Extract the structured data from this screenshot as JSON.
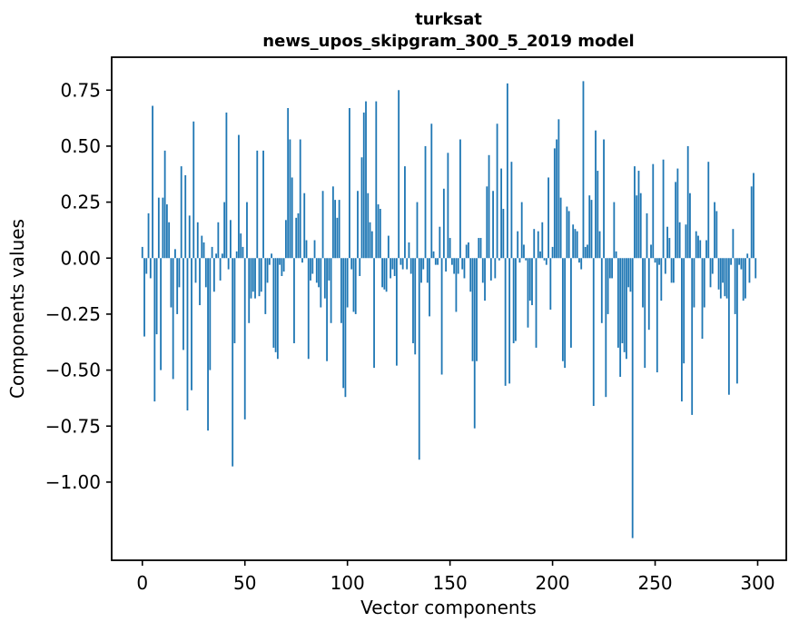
{
  "figure": {
    "background": "#ffffff",
    "text_color": "#000000"
  },
  "chart_data": {
    "type": "bar",
    "title_line1": "turksat",
    "title_line2": "news_upos_skipgram_300_5_2019 model",
    "xlabel": "Vector components",
    "ylabel": "Components values",
    "bar_color": "#1f77b4",
    "grid": false,
    "legend": null,
    "x_start": 0,
    "xlim": [
      -14.95,
      313.95
    ],
    "ylim": [
      -1.349,
      0.897
    ],
    "xticks": [
      0,
      50,
      100,
      150,
      200,
      250,
      300
    ],
    "yticks": [
      0.75,
      0.5,
      0.25,
      0.0,
      -0.25,
      -0.5,
      -0.75,
      -1.0
    ],
    "values": [
      0.05,
      -0.35,
      -0.07,
      0.2,
      -0.09,
      0.68,
      -0.64,
      -0.34,
      0.27,
      -0.5,
      0.27,
      0.48,
      0.24,
      0.16,
      -0.22,
      -0.54,
      0.04,
      -0.25,
      -0.13,
      0.41,
      -0.41,
      0.37,
      -0.68,
      0.19,
      -0.59,
      0.61,
      -0.11,
      0.16,
      -0.21,
      0.1,
      0.07,
      -0.13,
      -0.77,
      -0.5,
      0.05,
      -0.15,
      0.02,
      0.16,
      -0.1,
      0.02,
      0.25,
      0.65,
      -0.05,
      0.17,
      -0.93,
      -0.38,
      0.03,
      0.55,
      0.11,
      0.05,
      -0.72,
      0.25,
      -0.29,
      -0.18,
      -0.15,
      -0.18,
      0.48,
      -0.17,
      -0.15,
      0.48,
      -0.25,
      -0.11,
      -0.03,
      0.02,
      -0.4,
      -0.42,
      -0.45,
      -0.03,
      -0.08,
      -0.06,
      0.17,
      0.67,
      0.53,
      0.36,
      -0.38,
      0.18,
      0.2,
      0.53,
      -0.02,
      0.29,
      0.08,
      -0.45,
      -0.1,
      -0.07,
      0.08,
      -0.11,
      -0.13,
      -0.22,
      0.3,
      -0.18,
      -0.46,
      -0.1,
      -0.29,
      0.32,
      0.26,
      0.18,
      0.26,
      -0.29,
      -0.58,
      -0.62,
      -0.22,
      0.67,
      -0.05,
      -0.24,
      -0.25,
      0.3,
      -0.08,
      0.45,
      0.65,
      0.7,
      0.29,
      0.16,
      0.12,
      -0.49,
      0.7,
      0.24,
      0.22,
      -0.13,
      -0.14,
      -0.15,
      0.1,
      -0.09,
      -0.05,
      -0.08,
      -0.48,
      0.75,
      -0.03,
      -0.05,
      0.41,
      -0.05,
      0.07,
      -0.07,
      -0.38,
      -0.43,
      0.25,
      -0.9,
      -0.11,
      -0.05,
      0.5,
      -0.11,
      -0.26,
      0.6,
      0.03,
      -0.03,
      -0.03,
      0.14,
      -0.52,
      0.31,
      -0.06,
      0.47,
      0.09,
      -0.03,
      -0.07,
      -0.24,
      -0.07,
      0.53,
      -0.05,
      -0.09,
      0.06,
      0.07,
      -0.15,
      -0.46,
      -0.76,
      -0.46,
      0.09,
      0.09,
      -0.11,
      -0.19,
      0.32,
      0.46,
      -0.1,
      0.3,
      -0.09,
      0.6,
      -0.01,
      0.4,
      0.22,
      -0.57,
      0.78,
      -0.56,
      0.43,
      -0.38,
      -0.37,
      0.12,
      -0.02,
      0.25,
      0.06,
      -0.01,
      -0.31,
      -0.19,
      -0.21,
      0.13,
      -0.4,
      0.12,
      0.03,
      0.16,
      -0.01,
      -0.03,
      0.36,
      -0.23,
      0.05,
      0.49,
      0.53,
      0.62,
      0.27,
      -0.46,
      -0.49,
      0.23,
      0.21,
      -0.4,
      0.15,
      0.13,
      0.12,
      -0.02,
      -0.05,
      0.79,
      0.05,
      0.06,
      0.28,
      0.26,
      -0.66,
      0.57,
      0.39,
      0.12,
      -0.29,
      0.53,
      -0.62,
      -0.25,
      -0.09,
      -0.09,
      0.25,
      0.03,
      -0.4,
      -0.53,
      -0.38,
      -0.42,
      -0.45,
      -0.13,
      -0.15,
      -1.25,
      0.41,
      0.28,
      0.39,
      0.29,
      -0.22,
      -0.49,
      0.2,
      -0.32,
      0.06,
      0.42,
      -0.02,
      -0.51,
      -0.03,
      -0.19,
      0.44,
      -0.07,
      0.14,
      0.09,
      -0.11,
      -0.11,
      0.34,
      0.4,
      0.16,
      -0.64,
      -0.47,
      0.15,
      0.5,
      0.29,
      -0.7,
      -0.22,
      0.12,
      0.1,
      0.08,
      -0.36,
      -0.22,
      0.08,
      0.43,
      -0.13,
      -0.07,
      0.25,
      0.21,
      -0.14,
      -0.18,
      -0.11,
      -0.17,
      -0.18,
      -0.61,
      -0.03,
      0.13,
      -0.25,
      -0.56,
      -0.03,
      -0.05,
      -0.19,
      -0.18,
      0.02,
      -0.11,
      0.32,
      0.38,
      -0.09
    ]
  }
}
